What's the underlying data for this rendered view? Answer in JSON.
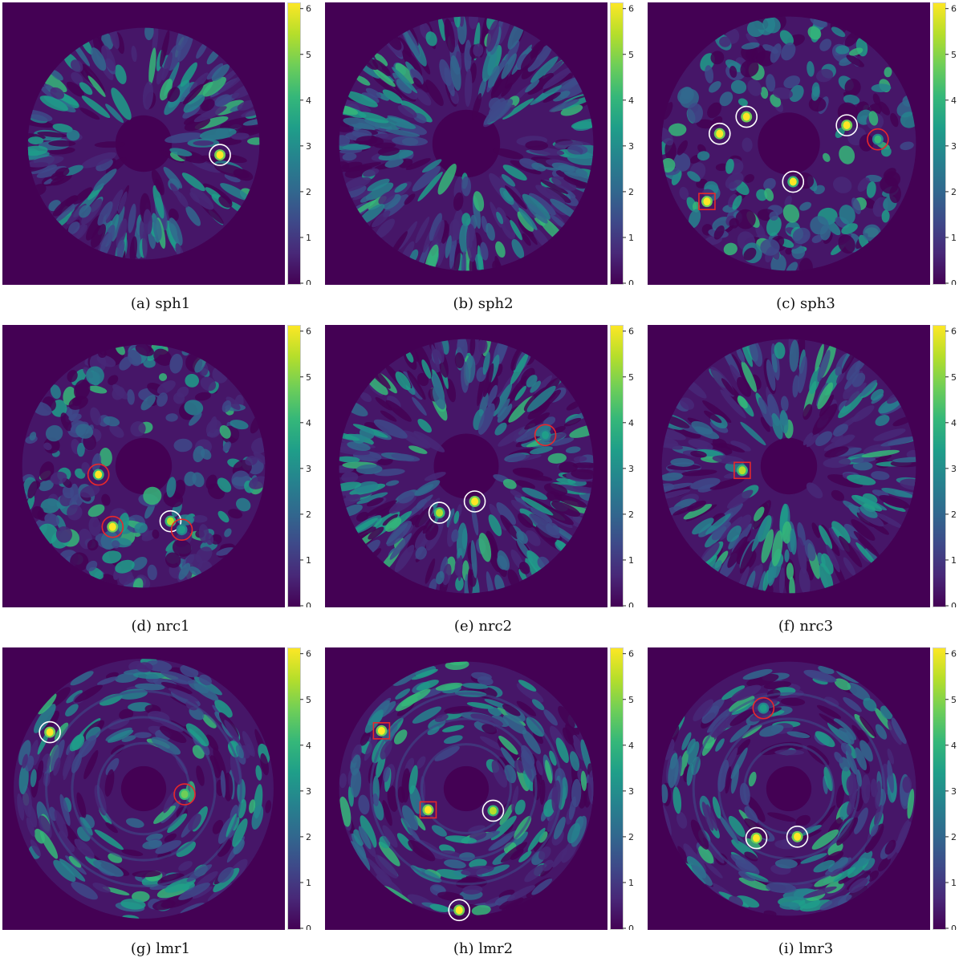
{
  "colors": {
    "background": "#440154",
    "colormap": [
      "#440154",
      "#482878",
      "#3e4989",
      "#31688e",
      "#26828e",
      "#1f9e89",
      "#35b779",
      "#6ece58",
      "#b5de2b",
      "#fde725"
    ],
    "white_marker": "#ffffff",
    "red_marker": "#e8272b"
  },
  "chart_data": [
    {
      "type": "heatmap",
      "caption": "(a) sph1",
      "colorbar": {
        "min": 0,
        "max": 6,
        "ticks": [
          0,
          1,
          2,
          3,
          4,
          5,
          6
        ]
      },
      "value_range": [
        0,
        6.1
      ],
      "field": {
        "texture": "radial-streaks",
        "seed": 11,
        "inner_radius": 0.2,
        "outer_radius": 0.82,
        "density": 0.55
      },
      "sources": [
        {
          "x": 0.77,
          "y": 0.54,
          "value": 6.0,
          "marker": "white-circle"
        }
      ]
    },
    {
      "type": "heatmap",
      "caption": "(b) sph2",
      "colorbar": {
        "min": 0,
        "max": 6,
        "ticks": [
          0,
          1,
          2,
          3,
          4,
          5,
          6
        ]
      },
      "value_range": [
        0,
        6.1
      ],
      "field": {
        "texture": "radial-streaks",
        "seed": 23,
        "inner_radius": 0.24,
        "outer_radius": 0.9,
        "density": 0.8
      },
      "sources": []
    },
    {
      "type": "heatmap",
      "caption": "(c) sph3",
      "colorbar": {
        "min": 0,
        "max": 6,
        "ticks": [
          0,
          1,
          2,
          3,
          4,
          5,
          6
        ]
      },
      "value_range": [
        0,
        6.1
      ],
      "field": {
        "texture": "blobs",
        "seed": 37,
        "inner_radius": 0.22,
        "outer_radius": 0.9,
        "density": 0.55
      },
      "sources": [
        {
          "x": 0.255,
          "y": 0.465,
          "value": 6.0,
          "marker": "white-circle"
        },
        {
          "x": 0.35,
          "y": 0.405,
          "value": 6.0,
          "marker": "white-circle"
        },
        {
          "x": 0.705,
          "y": 0.435,
          "value": 6.0,
          "marker": "white-circle"
        },
        {
          "x": 0.815,
          "y": 0.485,
          "value": 3.8,
          "marker": "red-circle"
        },
        {
          "x": 0.515,
          "y": 0.635,
          "value": 5.8,
          "marker": "white-circle"
        },
        {
          "x": 0.21,
          "y": 0.705,
          "value": 6.0,
          "marker": "red-square"
        }
      ]
    },
    {
      "type": "heatmap",
      "caption": "(d) nrc1",
      "colorbar": {
        "min": 0,
        "max": 6,
        "ticks": [
          0,
          1,
          2,
          3,
          4,
          5,
          6
        ]
      },
      "value_range": [
        0,
        6.1
      ],
      "field": {
        "texture": "blobs",
        "seed": 51,
        "inner_radius": 0.2,
        "outer_radius": 0.86,
        "density": 0.6
      },
      "sources": [
        {
          "x": 0.34,
          "y": 0.53,
          "value": 5.8,
          "marker": "red-circle"
        },
        {
          "x": 0.39,
          "y": 0.715,
          "value": 5.9,
          "marker": "red-circle"
        },
        {
          "x": 0.595,
          "y": 0.695,
          "value": 5.4,
          "marker": "white-circle"
        },
        {
          "x": 0.635,
          "y": 0.725,
          "value": 3.5,
          "marker": "red-circle"
        }
      ]
    },
    {
      "type": "heatmap",
      "caption": "(e) nrc2",
      "colorbar": {
        "min": 0,
        "max": 6,
        "ticks": [
          0,
          1,
          2,
          3,
          4,
          5,
          6
        ]
      },
      "value_range": [
        0,
        6.1
      ],
      "field": {
        "texture": "radial-streaks",
        "seed": 67,
        "inner_radius": 0.23,
        "outer_radius": 0.9,
        "density": 0.8
      },
      "sources": [
        {
          "x": 0.78,
          "y": 0.39,
          "value": 3.5,
          "marker": "red-circle"
        },
        {
          "x": 0.53,
          "y": 0.625,
          "value": 5.9,
          "marker": "white-circle"
        },
        {
          "x": 0.405,
          "y": 0.665,
          "value": 5.6,
          "marker": "white-circle"
        }
      ]
    },
    {
      "type": "heatmap",
      "caption": "(f) nrc3",
      "colorbar": {
        "min": 0,
        "max": 6,
        "ticks": [
          0,
          1,
          2,
          3,
          4,
          5,
          6
        ]
      },
      "value_range": [
        0,
        6.1
      ],
      "field": {
        "texture": "radial-streaks",
        "seed": 79,
        "inner_radius": 0.2,
        "outer_radius": 0.9,
        "density": 0.65
      },
      "sources": [
        {
          "x": 0.335,
          "y": 0.515,
          "value": 5.6,
          "marker": "red-square"
        }
      ]
    },
    {
      "type": "heatmap",
      "caption": "(g) lmr1",
      "colorbar": {
        "min": 0,
        "max": 6,
        "ticks": [
          0,
          1,
          2,
          3,
          4,
          5,
          6
        ]
      },
      "value_range": [
        0,
        6.1
      ],
      "field": {
        "texture": "rings",
        "seed": 83,
        "inner_radius": 0.16,
        "outer_radius": 0.92,
        "density": 0.55
      },
      "sources": [
        {
          "x": 0.168,
          "y": 0.3,
          "value": 6.1,
          "marker": "white-circle"
        },
        {
          "x": 0.645,
          "y": 0.52,
          "value": 5.0,
          "marker": "red-circle"
        }
      ]
    },
    {
      "type": "heatmap",
      "caption": "(h) lmr2",
      "colorbar": {
        "min": 0,
        "max": 6,
        "ticks": [
          0,
          1,
          2,
          3,
          4,
          5,
          6
        ]
      },
      "value_range": [
        0,
        6.1
      ],
      "field": {
        "texture": "rings",
        "seed": 97,
        "inner_radius": 0.16,
        "outer_radius": 0.9,
        "density": 0.6
      },
      "sources": [
        {
          "x": 0.2,
          "y": 0.295,
          "value": 6.0,
          "marker": "red-square"
        },
        {
          "x": 0.365,
          "y": 0.575,
          "value": 6.0,
          "marker": "red-square"
        },
        {
          "x": 0.595,
          "y": 0.578,
          "value": 5.6,
          "marker": "white-circle"
        },
        {
          "x": 0.475,
          "y": 0.93,
          "value": 6.1,
          "marker": "white-circle"
        }
      ]
    },
    {
      "type": "heatmap",
      "caption": "(i) lmr3",
      "colorbar": {
        "min": 0,
        "max": 6,
        "ticks": [
          0,
          1,
          2,
          3,
          4,
          5,
          6
        ]
      },
      "value_range": [
        0,
        6.1
      ],
      "field": {
        "texture": "rings",
        "seed": 113,
        "inner_radius": 0.16,
        "outer_radius": 0.9,
        "density": 0.6
      },
      "sources": [
        {
          "x": 0.41,
          "y": 0.215,
          "value": 3.2,
          "marker": "red-circle"
        },
        {
          "x": 0.385,
          "y": 0.675,
          "value": 5.9,
          "marker": "white-circle"
        },
        {
          "x": 0.53,
          "y": 0.67,
          "value": 5.9,
          "marker": "white-circle"
        }
      ]
    }
  ]
}
